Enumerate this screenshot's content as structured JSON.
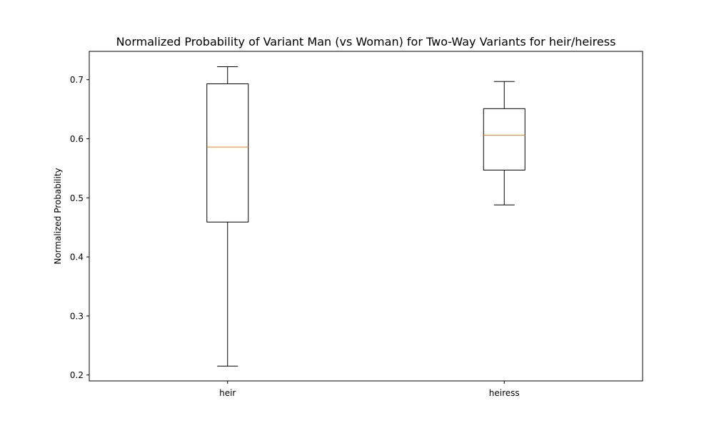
{
  "chart_data": {
    "type": "box",
    "title": "Normalized Probability of Variant Man (vs Woman) for Two-Way Variants for heir/heiress",
    "xlabel": "",
    "ylabel": "Normalized Probability",
    "ylim": [
      0.19,
      0.748
    ],
    "yticks": [
      0.2,
      0.3,
      0.4,
      0.5,
      0.6,
      0.7
    ],
    "ytick_labels": [
      "0.2",
      "0.3",
      "0.4",
      "0.5",
      "0.6",
      "0.7"
    ],
    "categories": [
      "heir",
      "heiress"
    ],
    "boxes": [
      {
        "category": "heir",
        "whisker_low": 0.215,
        "q1": 0.459,
        "median": 0.586,
        "q3": 0.693,
        "whisker_high": 0.722
      },
      {
        "category": "heiress",
        "whisker_low": 0.488,
        "q1": 0.547,
        "median": 0.606,
        "q3": 0.651,
        "whisker_high": 0.697
      }
    ],
    "grid": false,
    "colors": {
      "box": "#000000",
      "median": "#ff7f0e"
    }
  }
}
